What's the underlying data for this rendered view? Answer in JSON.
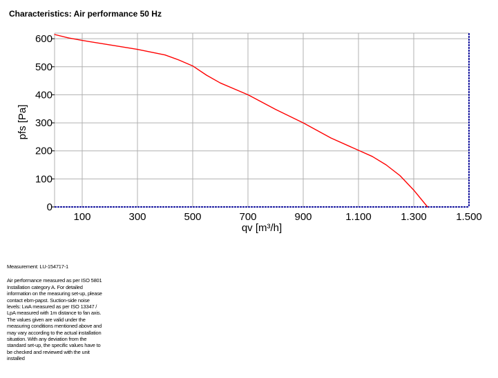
{
  "title": "Characteristics: Air performance 50 Hz",
  "chart_data": {
    "type": "line",
    "xlabel": "qv [m³/h]",
    "ylabel": "pfs [Pa]",
    "xlim": [
      0,
      1500
    ],
    "ylim": [
      0,
      620
    ],
    "xticks": [
      100,
      300,
      500,
      700,
      900,
      1100,
      1300,
      1500
    ],
    "xtick_labels": [
      "100",
      "300",
      "500",
      "700",
      "900",
      "1.100",
      "1.300",
      "1.500"
    ],
    "yticks": [
      0,
      100,
      200,
      300,
      400,
      500,
      600
    ],
    "ytick_labels": [
      "0",
      "100",
      "200",
      "300",
      "400",
      "500",
      "600"
    ],
    "grid": true,
    "series": [
      {
        "color": "#ff0000",
        "x": [
          0,
          50,
          100,
          200,
          300,
          400,
          450,
          500,
          550,
          600,
          700,
          800,
          900,
          1000,
          1100,
          1150,
          1200,
          1250,
          1300,
          1350
        ],
        "y": [
          615,
          603,
          594,
          578,
          562,
          542,
          524,
          503,
          470,
          442,
          400,
          348,
          300,
          246,
          202,
          180,
          150,
          112,
          60,
          0
        ]
      }
    ],
    "boundary_line": {
      "x": 1500,
      "color": "#1a1aa0"
    },
    "zero_line_color": "#1a1aa0"
  },
  "notes": {
    "measurement": "Measurement: LU-154717-1",
    "description_lines": [
      "Air performance measured as per ISO 5801",
      "Installation category A. For detailed",
      "information on the measuring set-up, please",
      "contact ebm-papst. Suction-side noise",
      "levels: LwA measured as per ISO 13347 /",
      "LpA measured with 1m distance to fan axis.",
      "The values given are valid under the",
      "measuring conditions mentioned above and",
      "may vary according to the actual installation",
      "situation. With any deviation from the",
      "standard set-up, the specific values have to",
      "be checked and reviewed with the unit",
      "installed"
    ]
  }
}
